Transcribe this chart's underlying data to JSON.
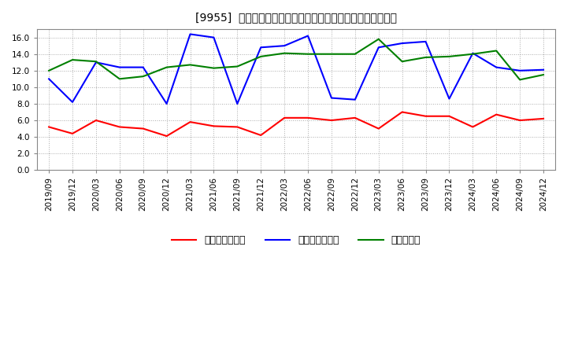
{
  "title": "[9955]  売上債権回転率、買入債務回転率、在庫回転率の推移",
  "dates": [
    "2019/09",
    "2019/12",
    "2020/03",
    "2020/06",
    "2020/09",
    "2020/12",
    "2021/03",
    "2021/06",
    "2021/09",
    "2021/12",
    "2022/03",
    "2022/06",
    "2022/09",
    "2022/12",
    "2023/03",
    "2023/06",
    "2023/09",
    "2023/12",
    "2024/03",
    "2024/06",
    "2024/09",
    "2024/12"
  ],
  "receivables_turnover": [
    5.2,
    4.4,
    6.0,
    5.2,
    5.0,
    4.1,
    5.8,
    5.3,
    5.2,
    4.2,
    6.3,
    6.3,
    6.0,
    6.3,
    5.0,
    7.0,
    6.5,
    6.5,
    5.2,
    6.7,
    6.0,
    6.2
  ],
  "payables_turnover": [
    11.0,
    8.2,
    13.0,
    12.4,
    12.4,
    8.0,
    16.4,
    16.0,
    8.0,
    14.8,
    15.0,
    16.2,
    8.7,
    8.5,
    14.8,
    15.3,
    15.5,
    8.6,
    14.1,
    12.4,
    12.0,
    12.1
  ],
  "inventory_turnover": [
    12.0,
    13.3,
    13.1,
    11.0,
    11.3,
    12.4,
    12.7,
    12.3,
    12.5,
    13.7,
    14.1,
    14.0,
    14.0,
    14.0,
    15.8,
    13.1,
    13.6,
    13.7,
    14.0,
    14.4,
    10.9,
    11.5
  ],
  "receivables_color": "#ff0000",
  "payables_color": "#0000ff",
  "inventory_color": "#008000",
  "ylim": [
    0.0,
    17.0
  ],
  "yticks": [
    0.0,
    2.0,
    4.0,
    6.0,
    8.0,
    10.0,
    12.0,
    14.0,
    16.0
  ],
  "legend_labels": [
    "売上債権回転率",
    "買入債務回転率",
    "在庫回転率"
  ],
  "bg_color": "#ffffff",
  "plot_bg_color": "#ffffff",
  "grid_color": "#aaaaaa",
  "title_fontsize": 11,
  "axis_fontsize": 7.5,
  "legend_fontsize": 9
}
